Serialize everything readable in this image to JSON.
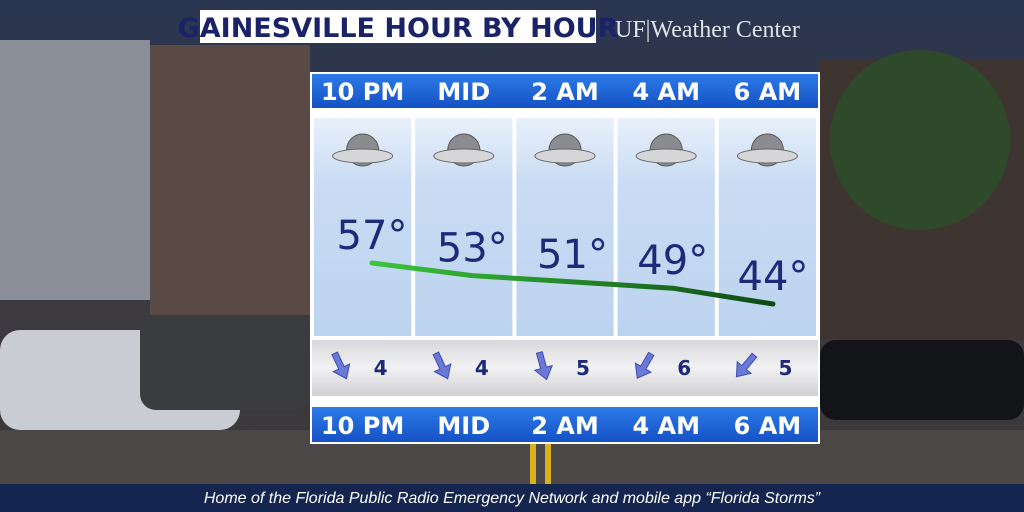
{
  "header": {
    "title": "GAINESVILLE HOUR BY HOUR",
    "brand": "UF|Weather Center"
  },
  "forecast": {
    "hours": [
      "10 PM",
      "MID",
      "2 AM",
      "4 AM",
      "6 AM"
    ],
    "temperatures": [
      57,
      53,
      51,
      49,
      44
    ],
    "temperature_labels": [
      "57°",
      "53°",
      "51°",
      "49°",
      "44°"
    ],
    "wind_speeds": [
      4,
      4,
      5,
      6,
      5
    ]
  },
  "footer": {
    "text": "Home of the Florida Public Radio Emergency Network and mobile app “Florida Storms”"
  }
}
